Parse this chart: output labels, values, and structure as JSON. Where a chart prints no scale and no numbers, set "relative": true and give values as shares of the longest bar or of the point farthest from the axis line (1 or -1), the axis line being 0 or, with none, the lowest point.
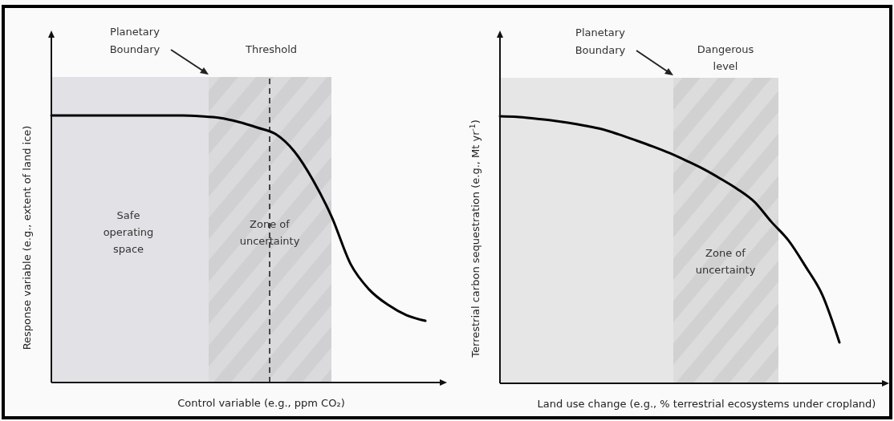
{
  "chart_data": [
    {
      "type": "line",
      "relative": true,
      "xlabel": "Control variable (e.g., ppm CO₂)",
      "ylabel": "Response variable (e.g., extent of land ice)",
      "categories": [
        null,
        null,
        null,
        null,
        null,
        null,
        null,
        null,
        null,
        null,
        null,
        null,
        null,
        null,
        null,
        null,
        null,
        null,
        null,
        null,
        null
      ],
      "series": [
        {
          "color": "#000000",
          "values": [
            1,
            1,
            1,
            1,
            1,
            1,
            1,
            1,
            0.997,
            0.991,
            0.976,
            0.955,
            0.93,
            0.865,
            0.757,
            0.619,
            0.444,
            0.348,
            0.291,
            0.252,
            0.231
          ]
        }
      ],
      "annotations": [
        "Planetary Boundary",
        "Threshold",
        "Safe operating space",
        "Zone of uncertainty"
      ],
      "marker": "none",
      "line_style": "solid"
    },
    {
      "type": "line",
      "relative": true,
      "xlabel": "Land use change (e.g., % terrestrial ecosystems under cropland)",
      "ylabel": "Terrestrial carbon sequestration (e.g., Mt yr$^{-1}$)",
      "categories": [
        null,
        null,
        null,
        null,
        null,
        null,
        null,
        null,
        null,
        null,
        null,
        null,
        null,
        null,
        null,
        null,
        null,
        null,
        null,
        null,
        null
      ],
      "series": [
        {
          "color": "#000000",
          "values": [
            1,
            0.998,
            0.992,
            0.985,
            0.976,
            0.965,
            0.952,
            0.932,
            0.91,
            0.887,
            0.862,
            0.833,
            0.802,
            0.766,
            0.727,
            0.679,
            0.604,
            0.535,
            0.438,
            0.33,
            0.153
          ]
        }
      ],
      "annotations": [
        "Planetary Boundary",
        "Dangerous level",
        "Zone of uncertainty"
      ],
      "marker": "none",
      "line_style": "solid"
    }
  ]
}
